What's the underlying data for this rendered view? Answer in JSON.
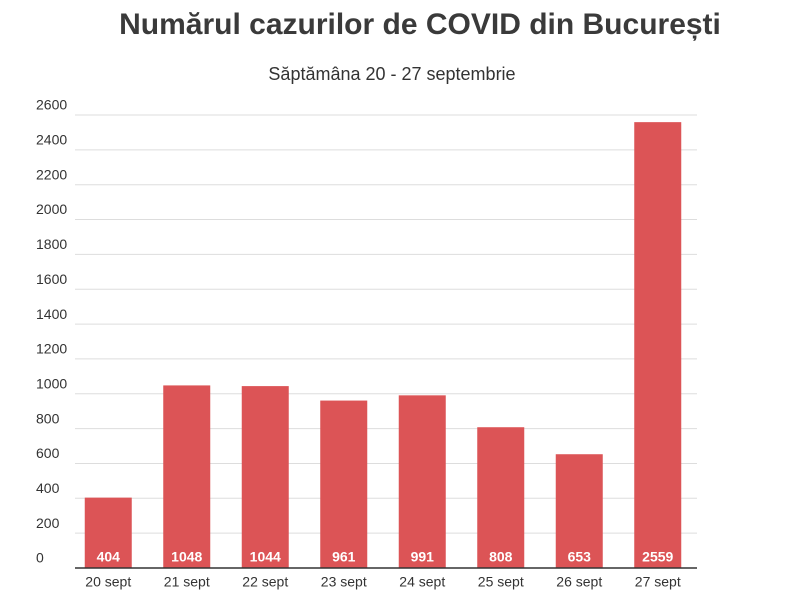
{
  "chart_data": {
    "type": "bar",
    "title": "Numărul cazurilor de COVID din București",
    "subtitle": "Săptămâna 20 - 27 septembrie",
    "categories": [
      "20 sept",
      "21 sept",
      "22 sept",
      "23 sept",
      "24 sept",
      "25 sept",
      "26 sept",
      "27 sept"
    ],
    "values": [
      404,
      1048,
      1044,
      961,
      991,
      808,
      653,
      2559
    ],
    "color": "#dc5456",
    "ylim": [
      0,
      2600
    ],
    "yticks": [
      0,
      200,
      400,
      600,
      800,
      1000,
      1200,
      1400,
      1600,
      1800,
      2000,
      2200,
      2400,
      2600
    ],
    "grid": true
  }
}
